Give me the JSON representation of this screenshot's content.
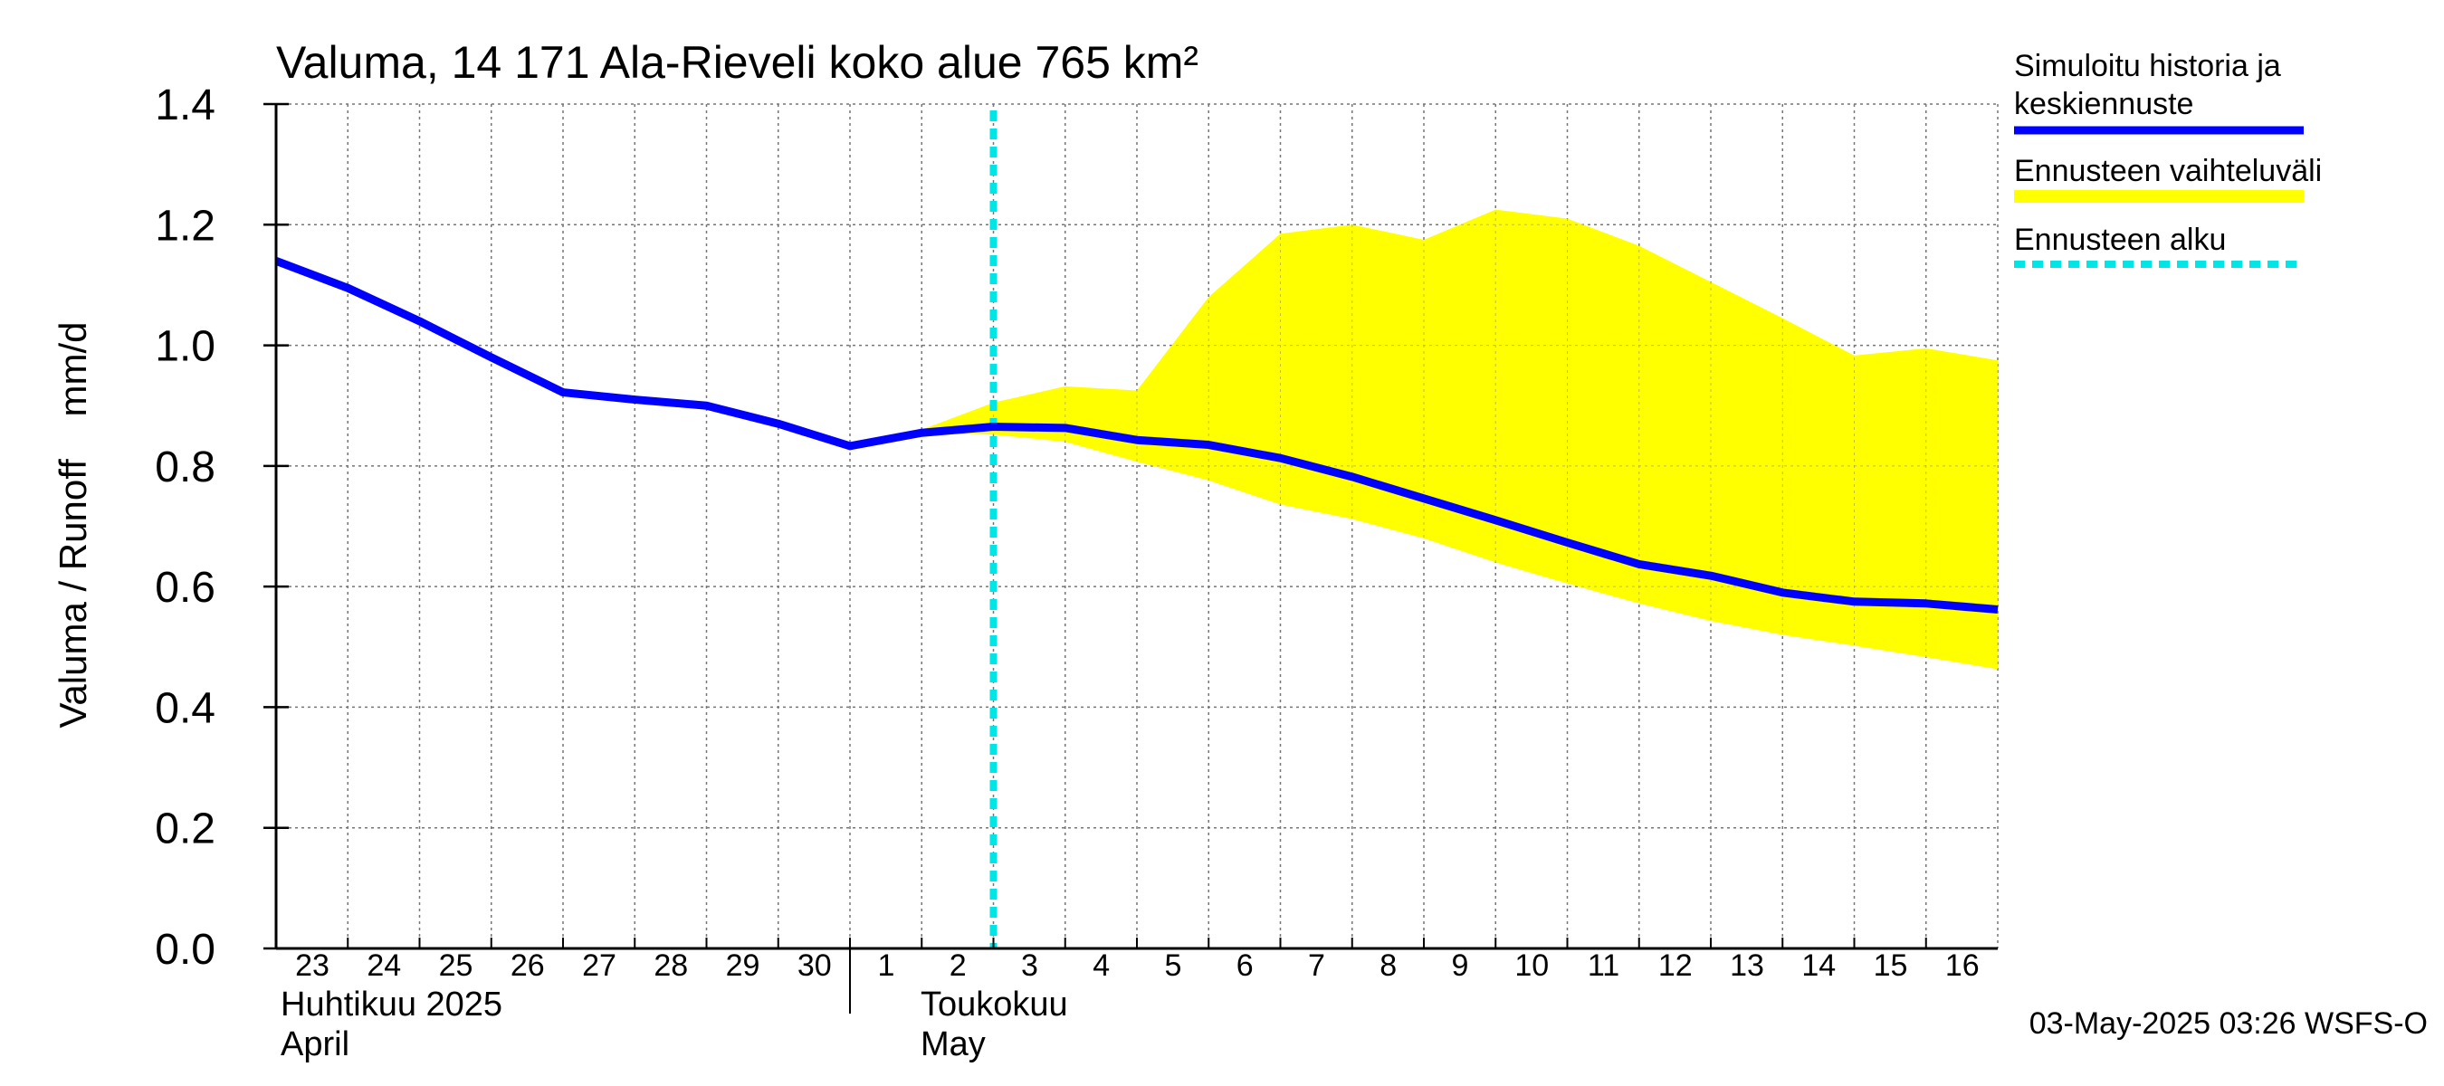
{
  "chart_data": {
    "type": "area",
    "title": "Valuma, 14 171 Ala-Rieveli koko alue 765 km²",
    "ylabel": "Valuma / Runoff    mm/d",
    "ylim": [
      0.0,
      1.4
    ],
    "yticks": [
      "0.0",
      "0.2",
      "0.4",
      "0.6",
      "0.8",
      "1.0",
      "1.2",
      "1.4"
    ],
    "grid": true,
    "legend_position": "right",
    "x_ticks": [
      "23",
      "24",
      "25",
      "26",
      "27",
      "28",
      "29",
      "30",
      "1",
      "2",
      "3",
      "4",
      "5",
      "6",
      "7",
      "8",
      "9",
      "10",
      "11",
      "12",
      "13",
      "14",
      "15",
      "16"
    ],
    "month_labels": [
      {
        "line1": "Huhtikuu  2025",
        "line2": "April"
      },
      {
        "line1": "Toukokuu",
        "line2": "May"
      }
    ],
    "x": [
      "2025-04-23",
      "2025-04-24",
      "2025-04-25",
      "2025-04-26",
      "2025-04-27",
      "2025-04-28",
      "2025-04-29",
      "2025-04-30",
      "2025-05-01",
      "2025-05-02",
      "2025-05-03",
      "2025-05-04",
      "2025-05-05",
      "2025-05-06",
      "2025-05-07",
      "2025-05-08",
      "2025-05-09",
      "2025-05-10",
      "2025-05-11",
      "2025-05-12",
      "2025-05-13",
      "2025-05-14",
      "2025-05-15",
      "2025-05-16",
      "2025-05-17"
    ],
    "series": [
      {
        "name": "Simuloitu historia ja keskiennuste",
        "color": "#0000ff",
        "values": [
          1.14,
          1.095,
          1.04,
          0.98,
          0.922,
          0.91,
          0.9,
          0.87,
          0.833,
          0.855,
          0.865,
          0.863,
          0.843,
          0.835,
          0.813,
          0.782,
          0.746,
          0.71,
          0.673,
          0.637,
          0.618,
          0.59,
          0.575,
          0.572,
          0.562
        ]
      },
      {
        "name": "Ennusteen vaihteluväli",
        "color": "#ffff00",
        "x": [
          "2025-05-02",
          "2025-05-03",
          "2025-05-04",
          "2025-05-05",
          "2025-05-06",
          "2025-05-07",
          "2025-05-08",
          "2025-05-09",
          "2025-05-10",
          "2025-05-11",
          "2025-05-12",
          "2025-05-13",
          "2025-05-14",
          "2025-05-15",
          "2025-05-16",
          "2025-05-17"
        ],
        "upper": [
          0.86,
          0.905,
          0.932,
          0.925,
          1.08,
          1.185,
          1.2,
          1.175,
          1.225,
          1.21,
          1.165,
          1.105,
          1.045,
          0.983,
          0.995,
          0.975
        ],
        "lower": [
          0.855,
          0.852,
          0.84,
          0.807,
          0.776,
          0.736,
          0.712,
          0.68,
          0.64,
          0.605,
          0.572,
          0.543,
          0.52,
          0.502,
          0.483,
          0.463
        ]
      }
    ],
    "forecast_start": {
      "name": "Ennusteen alku",
      "x": "2025-05-03",
      "color": "#00e5e5"
    },
    "legend": [
      {
        "line1": "Simuloitu historia ja",
        "line2": "keskiennuste",
        "color": "#0000ff",
        "style": "solid"
      },
      {
        "line1": "Ennusteen vaihteluväli",
        "line2": "",
        "color": "#ffff00",
        "style": "band"
      },
      {
        "line1": "Ennusteen alku",
        "line2": "",
        "color": "#00e5e5",
        "style": "dashed"
      }
    ],
    "footer": "03-May-2025 03:26 WSFS-O"
  }
}
